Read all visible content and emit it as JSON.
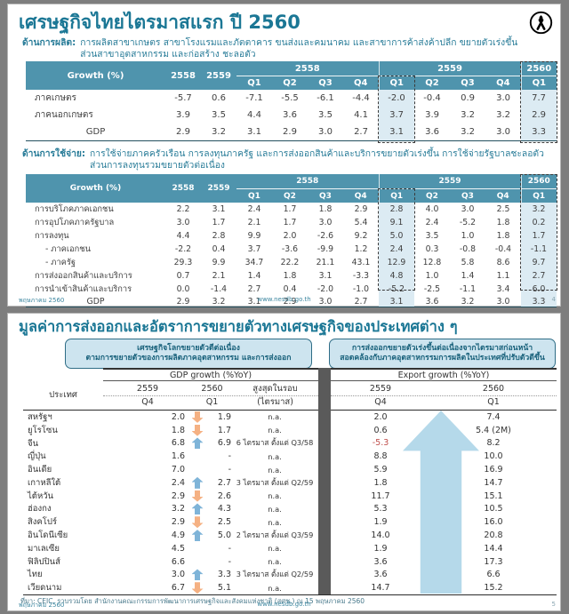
{
  "shared": {
    "growth_label": "Growth (%)",
    "y2558": "2558",
    "y2559": "2559",
    "y2560": "2560",
    "q1": "Q1",
    "q2": "Q2",
    "q3": "Q3",
    "q4": "Q4",
    "footer_left": "พฤษภาคม 2560",
    "footer_center": "www.nesdb.go.th"
  },
  "colors": {
    "teal_header": "#4f94ad",
    "title_teal": "#1b7795",
    "highlight_blue": "#dcebf3",
    "negative_red": "#c0504d",
    "arrow_up_blue": "#7fb4d8",
    "arrow_down_orange": "#f5b183",
    "big_arrow_blue": "#b5d9ea"
  },
  "slide1": {
    "title": "เศรษฐกิจไทยไตรมาสแรก ปี 2560",
    "ribbon_icon": "mourning-ribbon",
    "production_label": "ด้านการผลิต:",
    "production_line1": "การผลิตสาขาเกษตร สาขาโรงแรมและภัตตาคาร ขนส่งและคมนาคม และสาขาการค้าส่งค้าปลีก ขยายตัวเร่งขึ้น",
    "production_line2": "ส่วนสาขาอุตสาหกรรม และก่อสร้าง ชะลอตัว",
    "expenditure_label": "ด้านการใช้จ่าย:",
    "expenditure_line1": "การใช้จ่ายภาคครัวเรือน การลงทุนภาครัฐ และการส่งออกสินค้าและบริการขยายตัวเร่งขึ้น การใช้จ่ายรัฐบาลชะลอตัว",
    "expenditure_line2": "ส่วนการลงทุนรวมขยายตัวต่อเนื่อง",
    "production_table": {
      "rows": [
        {
          "label": "ภาคเกษตร",
          "values": [
            "-5.7",
            "0.6",
            "-7.1",
            "-5.5",
            "-6.1",
            "-4.4",
            "-2.0",
            "-0.4",
            "0.9",
            "3.0",
            "7.7"
          ]
        },
        {
          "label": "ภาคนอกเกษตร",
          "values": [
            "3.9",
            "3.5",
            "4.4",
            "3.6",
            "3.5",
            "4.1",
            "3.7",
            "3.9",
            "3.2",
            "3.2",
            "2.9"
          ]
        },
        {
          "label": "GDP",
          "center": true,
          "values": [
            "2.9",
            "3.2",
            "3.1",
            "2.9",
            "3.0",
            "2.7",
            "3.1",
            "3.6",
            "3.2",
            "3.0",
            "3.3"
          ]
        }
      ]
    },
    "expenditure_table": {
      "rows": [
        {
          "label": "การบริโภคภาคเอกชน",
          "values": [
            "2.2",
            "3.1",
            "2.4",
            "1.7",
            "1.8",
            "2.9",
            "2.8",
            "4.0",
            "3.0",
            "2.5",
            "3.2"
          ]
        },
        {
          "label": "การอุปโภคภาครัฐบาล",
          "values": [
            "3.0",
            "1.7",
            "2.1",
            "1.7",
            "3.0",
            "5.4",
            "9.1",
            "2.4",
            "-5.2",
            "1.8",
            "0.2"
          ]
        },
        {
          "label": "การลงทุน",
          "values": [
            "4.4",
            "2.8",
            "9.9",
            "2.0",
            "-2.6",
            "9.2",
            "5.0",
            "3.5",
            "1.0",
            "1.8",
            "1.7"
          ]
        },
        {
          "label": "- ภาคเอกชน",
          "indent": true,
          "values": [
            "-2.2",
            "0.4",
            "3.7",
            "-3.6",
            "-9.9",
            "1.2",
            "2.4",
            "0.3",
            "-0.8",
            "-0.4",
            "-1.1"
          ]
        },
        {
          "label": "- ภาครัฐ",
          "indent": true,
          "values": [
            "29.3",
            "9.9",
            "34.7",
            "22.2",
            "21.1",
            "43.1",
            "12.9",
            "12.8",
            "5.8",
            "8.6",
            "9.7"
          ]
        },
        {
          "label": "การส่งออกสินค้าและบริการ",
          "values": [
            "0.7",
            "2.1",
            "1.4",
            "1.8",
            "3.1",
            "-3.3",
            "4.8",
            "1.0",
            "1.4",
            "1.1",
            "2.7"
          ]
        },
        {
          "label": "การนำเข้าสินค้าและบริการ",
          "values": [
            "0.0",
            "-1.4",
            "2.7",
            "0.4",
            "-2.0",
            "-1.0",
            "-5.2",
            "-2.5",
            "-1.1",
            "3.4",
            "6.0"
          ]
        },
        {
          "label": "GDP",
          "center": true,
          "values": [
            "2.9",
            "3.2",
            "3.1",
            "2.9",
            "3.0",
            "2.7",
            "3.1",
            "3.6",
            "3.2",
            "3.0",
            "3.3"
          ]
        }
      ]
    },
    "page": "4"
  },
  "slide2": {
    "title": "มูลค่าการส่งออกและอัตราการขยายตัวทางเศรษฐกิจของประเทศต่าง ๆ",
    "callout_left_line1": "เศรษฐกิจโลกขยายตัวดีต่อเนื่อง",
    "callout_left_line2": "ตามการขยายตัวของการผลิตภาคอุตสาหกรรม และการส่งออก",
    "callout_right_line1": "การส่งออกขยายตัวเร่งขึ้นต่อเนื่องจากไตรมาสก่อนหน้า",
    "callout_right_line2": "สอดคล้องกับภาคอุตสาหกรรมการผลิตในประเทศที่ปรับตัวดีขึ้น",
    "table": {
      "country_header": "ประเทศ",
      "gdp_group": "GDP growth (%YoY)",
      "export_group": "Export growth (%YoY)",
      "record_header_line1": "สูงสุดในรอบ",
      "record_header_line2": "(ไตรมาส)",
      "rows": [
        {
          "country": "สหรัฐฯ",
          "gdp_q4": "2.0",
          "trend": "down",
          "gdp_q1": "1.9",
          "record": "n.a.",
          "exp_q4": "2.0",
          "exp_q1": "7.4"
        },
        {
          "country": "ยูโรโซน",
          "gdp_q4": "1.8",
          "trend": "down",
          "gdp_q1": "1.7",
          "record": "n.a.",
          "exp_q4": "0.6",
          "exp_q1": "5.4 (2M)"
        },
        {
          "country": "จีน",
          "gdp_q4": "6.8",
          "trend": "up",
          "gdp_q1": "6.9",
          "record": "6 ไตรมาส ตั้งแต่  Q3/58",
          "exp_q4": "-5.3",
          "exp_q1": "8.2"
        },
        {
          "country": "ญี่ปุ่น",
          "gdp_q4": "1.6",
          "trend": "none",
          "gdp_q1": "-",
          "record": "n.a.",
          "exp_q4": "8.8",
          "exp_q1": "10.0"
        },
        {
          "country": "อินเดีย",
          "gdp_q4": "7.0",
          "trend": "none",
          "gdp_q1": "-",
          "record": "n.a.",
          "exp_q4": "5.9",
          "exp_q1": "16.9"
        },
        {
          "country": "เกาหลีใต้",
          "gdp_q4": "2.4",
          "trend": "up",
          "gdp_q1": "2.7",
          "record": "3 ไตรมาส ตั้งแต่  Q2/59",
          "exp_q4": "1.8",
          "exp_q1": "14.7"
        },
        {
          "country": "ไต้หวัน",
          "gdp_q4": "2.9",
          "trend": "down",
          "gdp_q1": "2.6",
          "record": "n.a.",
          "exp_q4": "11.7",
          "exp_q1": "15.1"
        },
        {
          "country": "ฮ่องกง",
          "gdp_q4": "3.2",
          "trend": "up",
          "gdp_q1": "4.3",
          "record": "n.a.",
          "exp_q4": "5.3",
          "exp_q1": "10.5"
        },
        {
          "country": "สิงคโปร์",
          "gdp_q4": "2.9",
          "trend": "down",
          "gdp_q1": "2.5",
          "record": "n.a.",
          "exp_q4": "1.9",
          "exp_q1": "16.0"
        },
        {
          "country": "อินโดนีเซีย",
          "gdp_q4": "4.9",
          "trend": "up",
          "gdp_q1": "5.0",
          "record": "2 ไตรมาส ตั้งแต่  Q3/59",
          "exp_q4": "14.0",
          "exp_q1": "20.8"
        },
        {
          "country": "มาเลเซีย",
          "gdp_q4": "4.5",
          "trend": "none",
          "gdp_q1": "-",
          "record": "n.a.",
          "exp_q4": "1.9",
          "exp_q1": "14.4"
        },
        {
          "country": "ฟิลิปปินส์",
          "gdp_q4": "6.6",
          "trend": "none",
          "gdp_q1": "-",
          "record": "n.a.",
          "exp_q4": "3.6",
          "exp_q1": "17.3"
        },
        {
          "country": "ไทย",
          "gdp_q4": "3.0",
          "trend": "up",
          "gdp_q1": "3.3",
          "record": "3 ไตรมาส ตั้งแต่  Q2/59",
          "exp_q4": "3.6",
          "exp_q1": "6.6"
        },
        {
          "country": "เวียดนาม",
          "gdp_q4": "6.7",
          "trend": "down",
          "gdp_q1": "5.1",
          "record": "n.a.",
          "exp_q4": "14.7",
          "exp_q1": "15.2"
        }
      ]
    },
    "source": "ที่มา: CEIC, รวบรวมโดย สำนักงานคณะกรรมการพัฒนาการเศรษฐกิจและสังคมแห่งชาติ (สศช.) ณ 15 พฤษภาคม 2560",
    "page": "5"
  }
}
